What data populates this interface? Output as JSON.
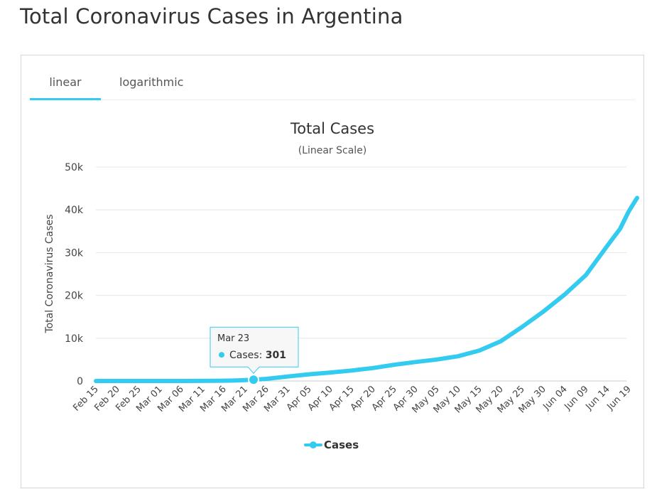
{
  "page": {
    "title": "Total Coronavirus Cases in Argentina"
  },
  "tabs": [
    {
      "label": "linear",
      "active": true
    },
    {
      "label": "logarithmic",
      "active": false
    }
  ],
  "colors": {
    "accent": "#33ccf0",
    "text": "#333333",
    "grid": "#e6e6e6"
  },
  "chart_data": {
    "type": "line",
    "title": "Total Cases",
    "subtitle": "(Linear Scale)",
    "ylabel": "Total Coronavirus Cases",
    "ylim": [
      0,
      50000
    ],
    "yticks": [
      {
        "value": 0,
        "label": "0"
      },
      {
        "value": 10000,
        "label": "10k"
      },
      {
        "value": 20000,
        "label": "20k"
      },
      {
        "value": 30000,
        "label": "30k"
      },
      {
        "value": 40000,
        "label": "40k"
      },
      {
        "value": 50000,
        "label": "50k"
      }
    ],
    "x_start": "Feb 15",
    "xtick_labels": [
      "Feb 15",
      "Feb 20",
      "Feb 25",
      "Mar 01",
      "Mar 06",
      "Mar 11",
      "Mar 16",
      "Mar 21",
      "Mar 26",
      "Mar 31",
      "Apr 05",
      "Apr 10",
      "Apr 15",
      "Apr 20",
      "Apr 25",
      "Apr 30",
      "May 05",
      "May 10",
      "May 15",
      "May 20",
      "May 25",
      "May 30",
      "Jun 04",
      "Jun 09",
      "Jun 14",
      "Jun 19"
    ],
    "grid": true,
    "legend_position": "bottom-center",
    "series": [
      {
        "name": "Cases",
        "points": [
          [
            "Feb 15",
            0
          ],
          [
            "Mar 03",
            1
          ],
          [
            "Mar 10",
            19
          ],
          [
            "Mar 16",
            65
          ],
          [
            "Mar 19",
            128
          ],
          [
            "Mar 23",
            301
          ],
          [
            "Mar 26",
            502
          ],
          [
            "Mar 31",
            1054
          ],
          [
            "Apr 05",
            1554
          ],
          [
            "Apr 10",
            1975
          ],
          [
            "Apr 15",
            2443
          ],
          [
            "Apr 20",
            3031
          ],
          [
            "Apr 25",
            3780
          ],
          [
            "Apr 30",
            4428
          ],
          [
            "May 05",
            5020
          ],
          [
            "May 10",
            5776
          ],
          [
            "May 15",
            7134
          ],
          [
            "May 20",
            9283
          ],
          [
            "May 25",
            12628
          ],
          [
            "May 30",
            16214
          ],
          [
            "Jun 04",
            20197
          ],
          [
            "Jun 09",
            24761
          ],
          [
            "Jun 14",
            31577
          ],
          [
            "Jun 17",
            35552
          ],
          [
            "Jun 19",
            39570
          ],
          [
            "Jun 21",
            42785
          ]
        ]
      }
    ],
    "tooltip": {
      "date": "Mar 23",
      "series": "Cases",
      "value_label": "301",
      "value": 301
    }
  }
}
